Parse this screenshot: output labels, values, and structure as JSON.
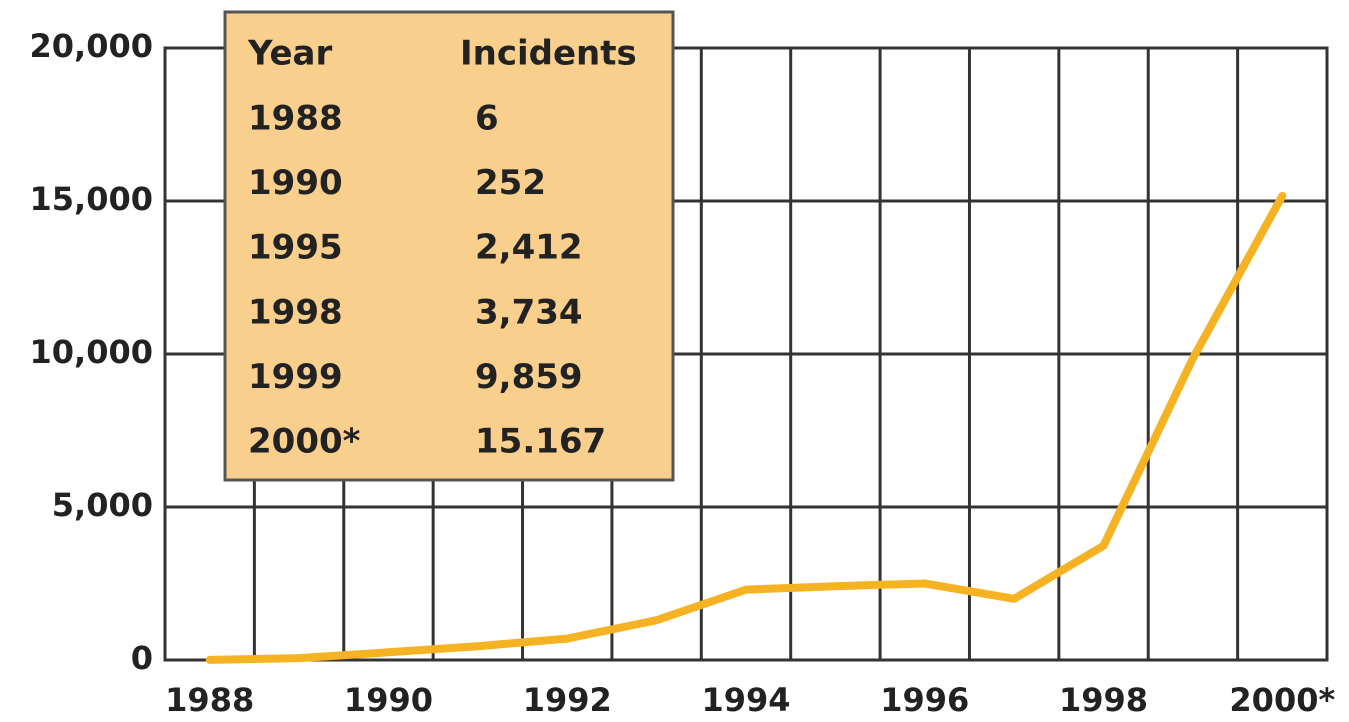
{
  "chart_data": {
    "type": "line",
    "categories": [
      "1988",
      null,
      "1990",
      null,
      "1992",
      null,
      "1994",
      null,
      "1996",
      null,
      "1998",
      null,
      "2000*"
    ],
    "series": [
      {
        "color": "#f5b324",
        "values": [
          6,
          60,
          252,
          450,
          700,
          1300,
          2300,
          2412,
          2500,
          2000,
          3734,
          9859,
          15167
        ]
      }
    ],
    "ylim": [
      0,
      20000
    ],
    "yticks": [
      0,
      {
        "value": 5000,
        "label": "5,000"
      },
      {
        "value": 10000,
        "label": "10,000"
      },
      {
        "value": 15000,
        "label": "15,000"
      },
      {
        "value": 20000,
        "label": "20,000"
      }
    ],
    "grid": true
  },
  "table": {
    "header": [
      "Year",
      "Incidents"
    ],
    "rows": [
      [
        "1988",
        "6"
      ],
      [
        "1990",
        "252"
      ],
      [
        "1995",
        "2,412"
      ],
      [
        "1998",
        "3,734"
      ],
      [
        "1999",
        "9,859"
      ],
      [
        "2000*",
        "15.167"
      ]
    ]
  }
}
